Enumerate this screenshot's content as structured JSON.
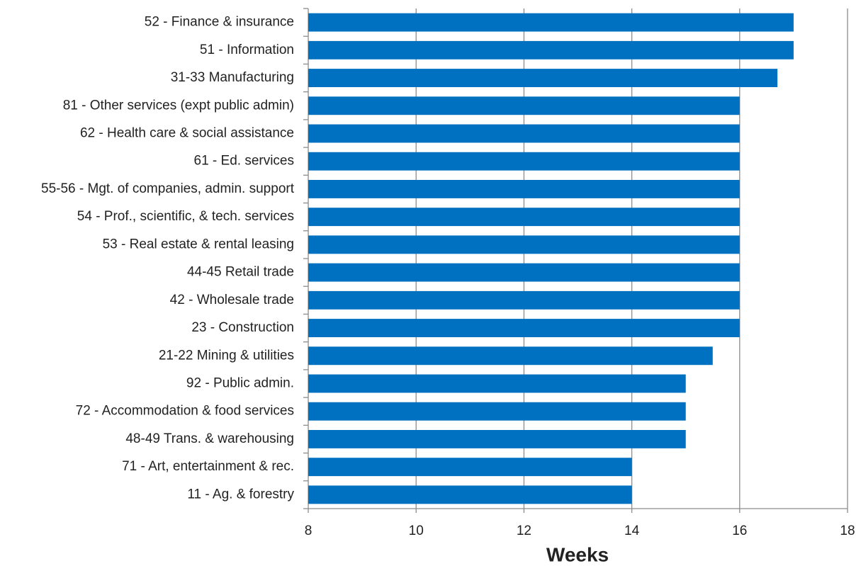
{
  "chart_data": {
    "type": "hbar",
    "x_label": "Weeks",
    "color": "#0070c0",
    "categories": [
      "52 - Finance & insurance",
      "51 - Information",
      "31-33 Manufacturing",
      "81 - Other services (expt public admin)",
      "62 - Health care & social assistance",
      "61 - Ed. services",
      "55-56 - Mgt. of companies, admin. support",
      "54 - Prof., scientific, & tech. services",
      "53 - Real estate & rental leasing",
      "44-45 Retail trade",
      "42 - Wholesale trade",
      "23 - Construction",
      "21-22 Mining & utilities",
      "92 - Public admin.",
      "72 - Accommodation & food services",
      "48-49 Trans. & warehousing",
      "71 - Art, entertainment & rec.",
      "11 - Ag. & forestry"
    ],
    "values": [
      17,
      17,
      16.7,
      16,
      16,
      16,
      16,
      16,
      16,
      16,
      16,
      16,
      15.5,
      15,
      15,
      15,
      14,
      14
    ],
    "xlim": [
      8,
      18
    ],
    "xticks": [
      8,
      10,
      12,
      14,
      16,
      18
    ],
    "grid": true
  }
}
